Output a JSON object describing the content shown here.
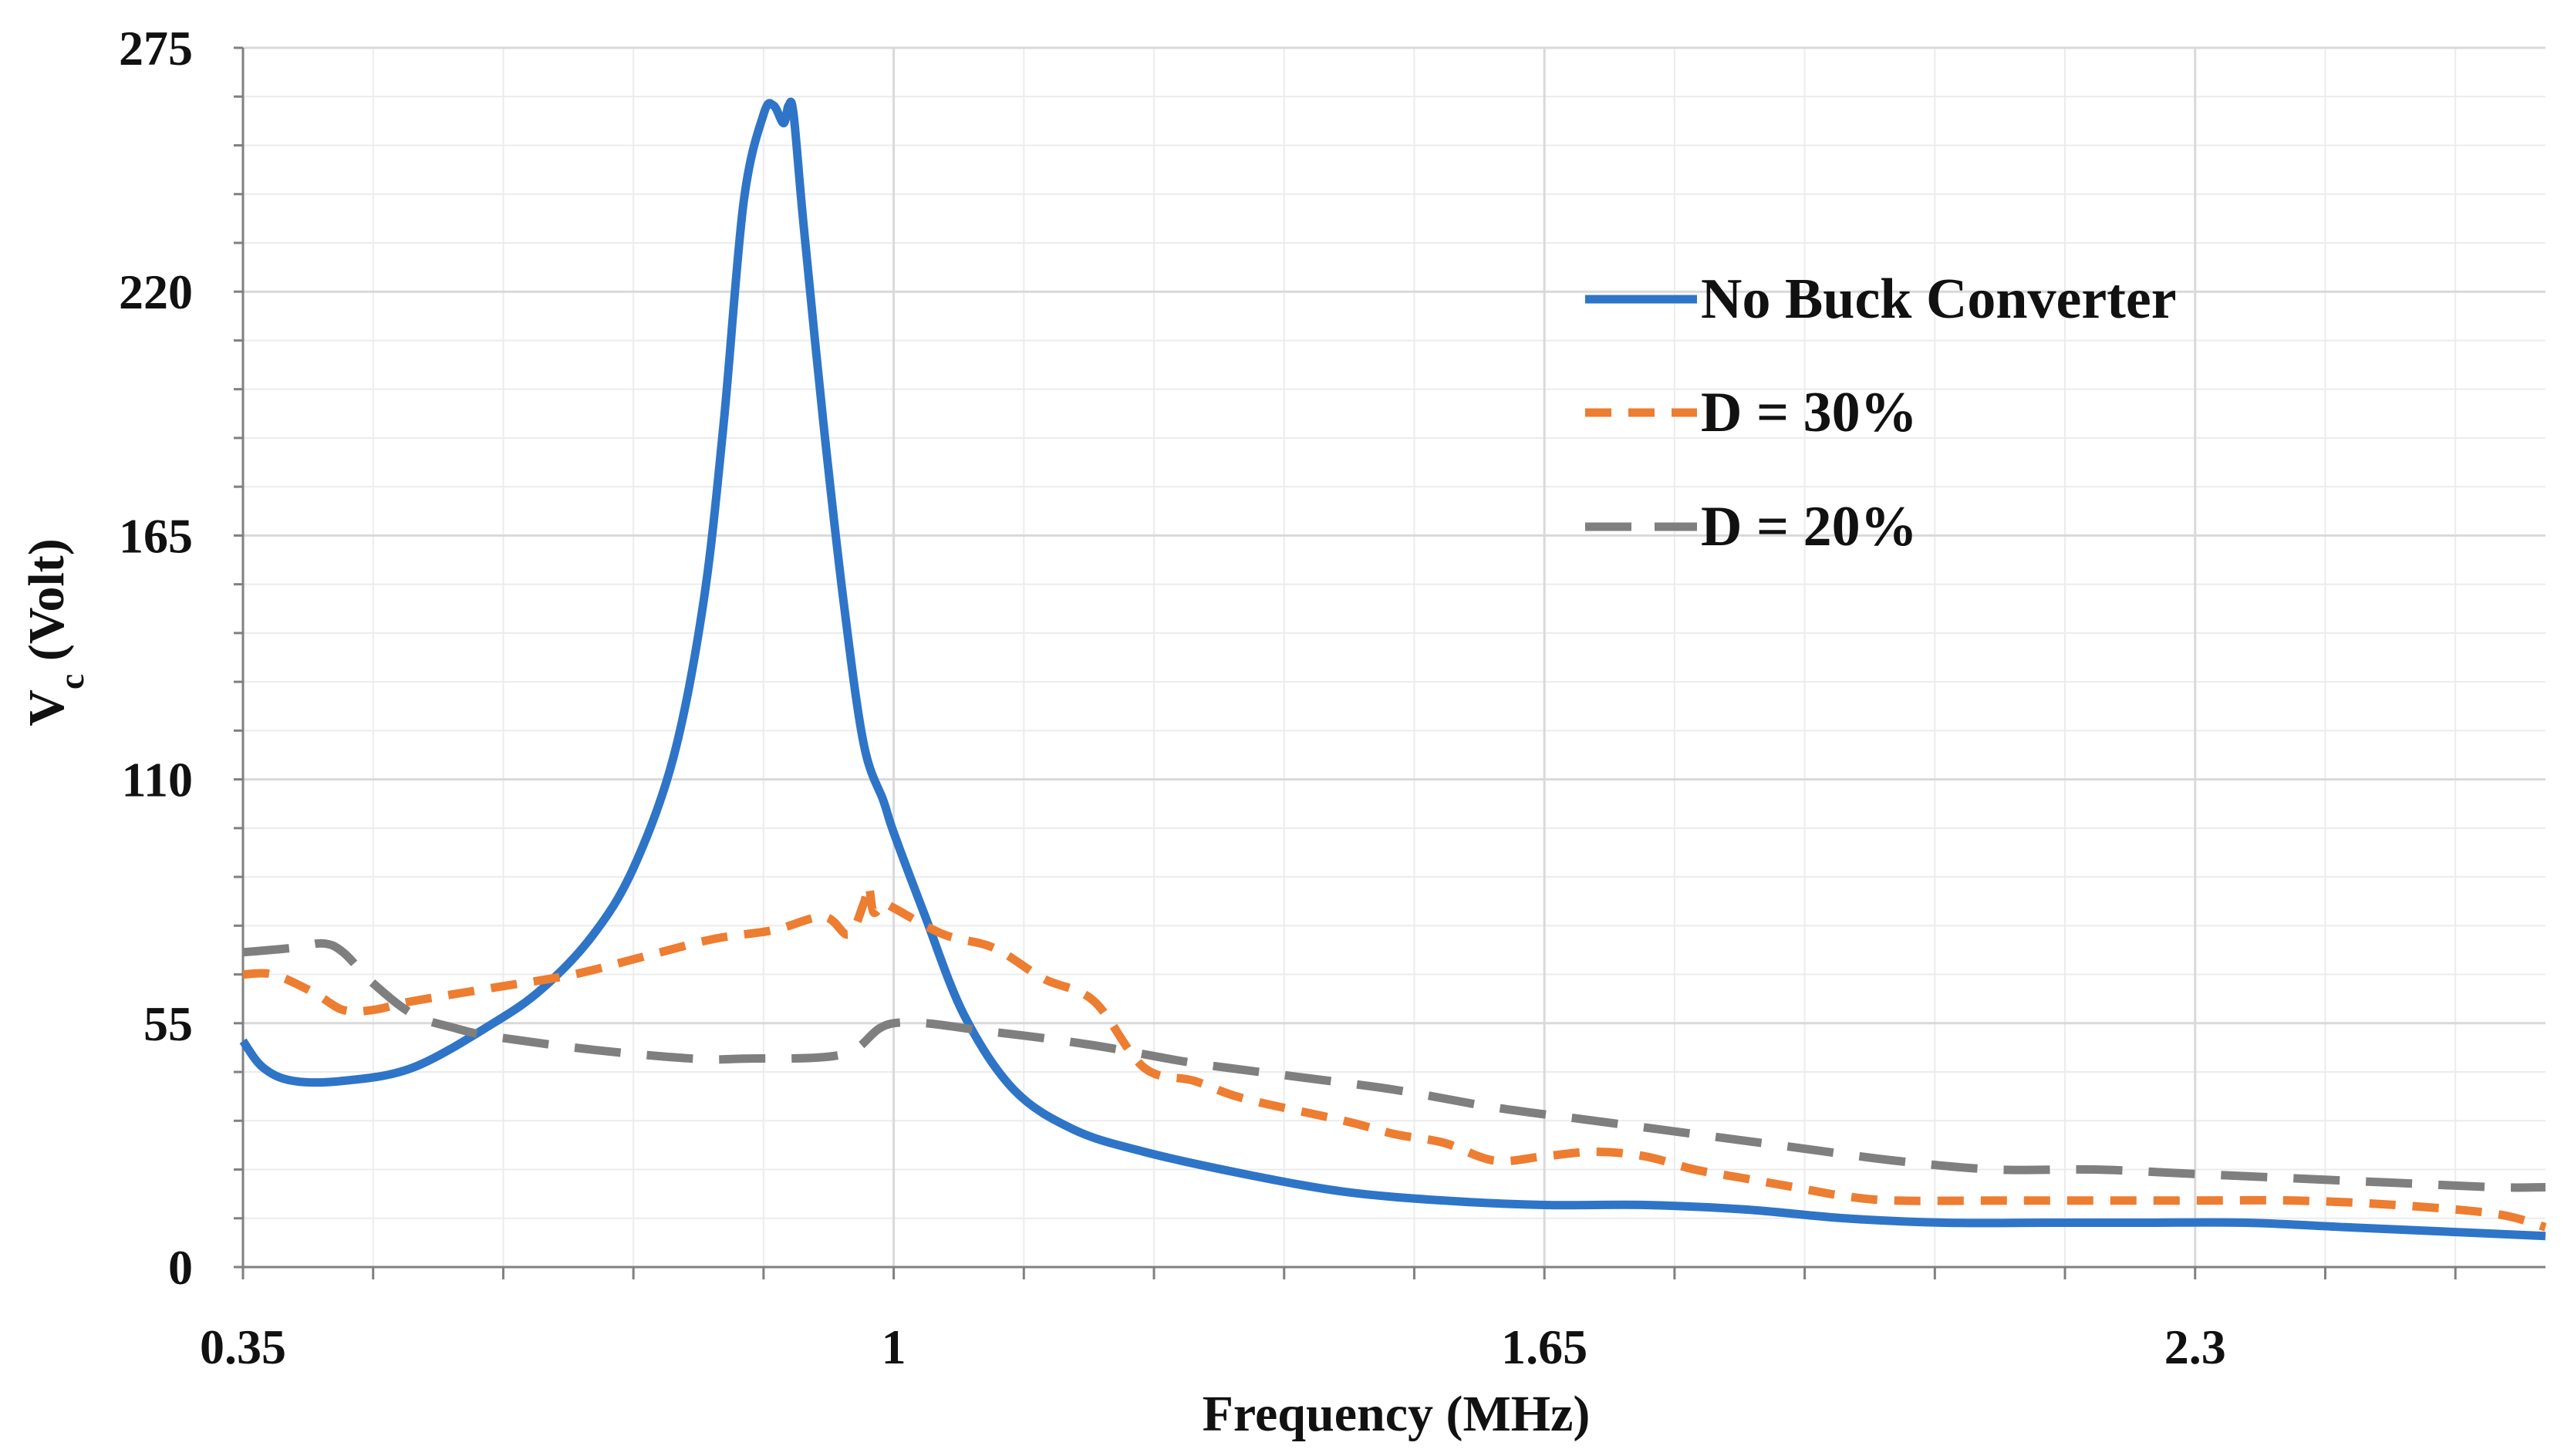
{
  "chart_data": {
    "type": "line",
    "title": "",
    "xlabel": "Frequency (MHz)",
    "ylabel": {
      "base": "V",
      "subscript": "c",
      "suffix": " (Volt)"
    },
    "xlim": [
      0.35,
      2.65
    ],
    "ylim": [
      0,
      275
    ],
    "xticks": [
      0.35,
      1,
      1.65,
      2.3
    ],
    "xtick_labels": [
      "0.35",
      "1",
      "1.65",
      "2.3"
    ],
    "yticks": [
      0,
      55,
      110,
      165,
      220,
      275
    ],
    "ytick_labels": [
      "0",
      "55",
      "110",
      "165",
      "220",
      "275"
    ],
    "grid": true,
    "legend": {
      "placement": "top-right"
    },
    "series": [
      {
        "name": "No Buck Converter",
        "color": "#2e75c8",
        "dash": "solid",
        "x": [
          0.35,
          0.37,
          0.4,
          0.45,
          0.52,
          0.6,
          0.65,
          0.7,
          0.74,
          0.78,
          0.81,
          0.83,
          0.85,
          0.87,
          0.88,
          0.89,
          0.895,
          0.9,
          0.91,
          0.93,
          0.95,
          0.97,
          0.99,
          1.0,
          1.03,
          1.07,
          1.12,
          1.18,
          1.25,
          1.35,
          1.45,
          1.55,
          1.65,
          1.75,
          1.85,
          1.95,
          2.05,
          2.15,
          2.25,
          2.35,
          2.45,
          2.55,
          2.65
        ],
        "y": [
          51,
          45,
          42,
          42,
          45,
          55,
          63,
          75,
          90,
          115,
          150,
          190,
          240,
          260,
          262,
          258,
          262,
          260,
          235,
          190,
          150,
          118,
          105,
          98,
          80,
          57,
          40,
          31,
          26,
          21,
          17,
          15,
          14,
          14,
          13,
          11,
          10,
          10,
          10,
          10,
          9,
          8,
          7
        ]
      },
      {
        "name": "D = 30%",
        "color": "#ed7d31",
        "dash": "dash",
        "x": [
          0.35,
          0.38,
          0.42,
          0.45,
          0.48,
          0.52,
          0.6,
          0.68,
          0.75,
          0.82,
          0.88,
          0.93,
          0.955,
          0.97,
          0.975,
          0.98,
          0.99,
          1.0,
          1.05,
          1.1,
          1.15,
          1.2,
          1.25,
          1.3,
          1.35,
          1.45,
          1.5,
          1.55,
          1.6,
          1.65,
          1.7,
          1.75,
          1.8,
          1.85,
          1.9,
          1.95,
          2.0,
          2.1,
          2.2,
          2.3,
          2.4,
          2.5,
          2.6,
          2.65
        ],
        "y": [
          66,
          66,
          62,
          58,
          58,
          60,
          63,
          66,
          70,
          74,
          76,
          79,
          75,
          82,
          86,
          80,
          82,
          81,
          75,
          72,
          65,
          60,
          45,
          42,
          38,
          33,
          30,
          28,
          24,
          25,
          26,
          25,
          22,
          20,
          18,
          16,
          15,
          15,
          15,
          15,
          15,
          14,
          12,
          9
        ]
      },
      {
        "name": "D = 20%",
        "color": "#7f7f7f",
        "dash": "longdash",
        "x": [
          0.35,
          0.4,
          0.43,
          0.45,
          0.48,
          0.52,
          0.56,
          0.6,
          0.7,
          0.8,
          0.85,
          0.95,
          1.0,
          1.1,
          1.2,
          1.3,
          1.4,
          1.5,
          1.6,
          1.7,
          1.8,
          1.9,
          2.0,
          2.1,
          2.2,
          2.3,
          2.4,
          2.5,
          2.6,
          2.65
        ],
        "y": [
          71,
          72,
          73,
          71,
          64,
          57,
          54,
          52,
          49,
          47,
          47,
          48,
          55,
          53,
          50,
          46,
          43,
          40,
          36,
          33,
          30,
          27,
          24,
          22,
          22,
          21,
          20,
          19,
          18,
          18
        ]
      }
    ]
  }
}
